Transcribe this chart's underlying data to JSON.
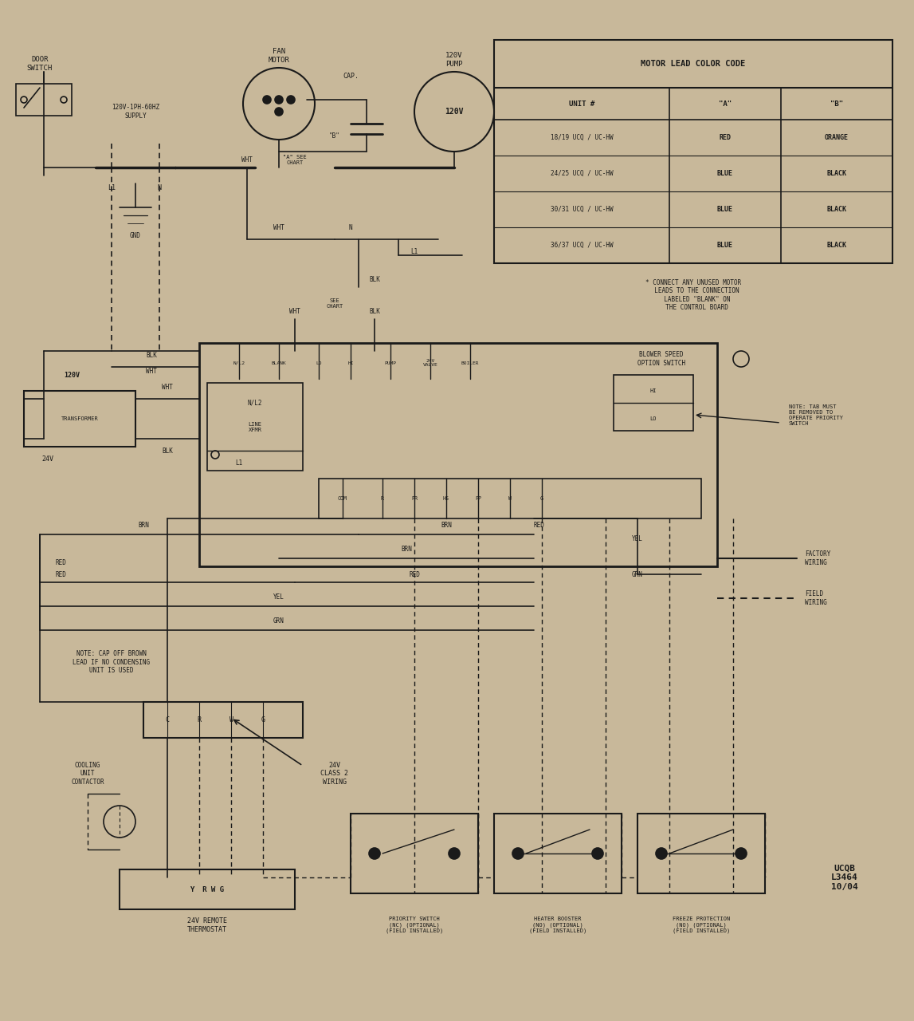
{
  "bg_color": "#c8b89a",
  "line_color": "#1a1a1a",
  "text_color": "#1a1a1a",
  "title": "MOTOR LEAD COLOR CODE",
  "table_headers": [
    "UNIT #",
    "\"A\"",
    "\"B\""
  ],
  "table_rows": [
    [
      "18/19 UCQ / UC-HW",
      "RED",
      "ORANGE"
    ],
    [
      "24/25 UCQ / UC-HW",
      "BLUE",
      "BLACK"
    ],
    [
      "30/31 UCQ / UC-HW",
      "BLUE",
      "BLACK"
    ],
    [
      "36/37 UCQ / UC-HW",
      "BLUE",
      "BLACK"
    ]
  ],
  "note1": "* CONNECT ANY UNUSED MOTOR\n  LEADS TO THE CONNECTION\n  LABELED \"BLANK\" ON\n  THE CONTROL BOARD",
  "note2": "NOTE: CAP OFF BROWN\nLEAD IF NO CONDENSING\nUNIT IS USED",
  "note3": "NOTE: TAB MUST\nBE REMOVED TO\nOPERATE PRIORITY\nSWITCH",
  "legend_factory": "FACTORY\nWIRING",
  "legend_field": "FIELD\nWIRING",
  "doc_id": "UCQB\nL3464\n10/04",
  "labels": {
    "door_switch": "DOOR\nSWITCH",
    "supply": "120V-1PH-60HZ\nSUPPLY",
    "fan_motor": "FAN\nMOTOR",
    "cap": "CAP.",
    "pump": "120V\nPUMP",
    "pump_circle": "120V",
    "l1": "L1",
    "n": "N",
    "gnd": "GND",
    "wht1": "WHT",
    "a_see_chart": "\"A\" SEE\nCHART",
    "b": "\"B\"",
    "wht2": "WHT",
    "n2": "N",
    "l12": "L1",
    "blk1": "BLK",
    "wht3": "WHT",
    "see_chart": "SEE\nCHART",
    "blk2": "BLK",
    "blk3": "BLK",
    "wht4": "WHT",
    "blk4": "BLK",
    "nl2b": "N/L2",
    "line_xfmr": "LINE\nXFMR",
    "l1b": "L1",
    "blower_speed": "BLOWER SPEED\nOPTION SWITCH",
    "brn": "BRN",
    "brn2": "BRN",
    "red": "RED",
    "red2": "RED",
    "yel": "YEL",
    "yel2": "YEL",
    "grn": "GRN",
    "grn2": "GRN",
    "thermostat_labels": "Y  R W G",
    "thermostat_title": "24V REMOTE\nTHERMOSTAT",
    "class2": "24V\nCLASS 2\nWIRING",
    "cooling_contactor": "COOLING\nUNIT\nCONTACTOR",
    "priority_switch": "PRIORITY SWITCH\n(NC) (OPTIONAL)\n(FIELD INSTALLED)",
    "heater_booster": "HEATER BOOSTER\n(NO) (OPTIONAL)\n(FIELD INSTALLED)",
    "freeze_protection": "FREEZE PROTECTION\n(NO) (OPTIONAL)\n(FIELD INSTALLED)"
  }
}
